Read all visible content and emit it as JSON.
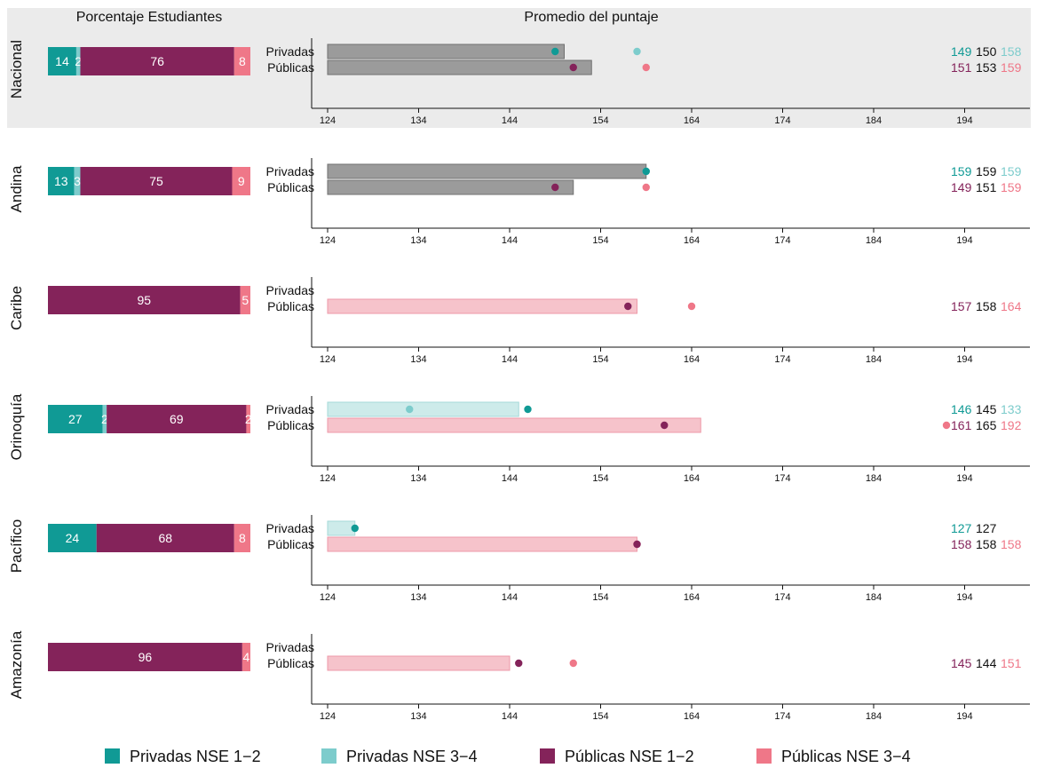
{
  "colors": {
    "priv_low": "#109A95",
    "priv_high": "#7DCCCC",
    "pub_low": "#84235A",
    "pub_high": "#EF7788",
    "bar_gray": "#9B9B9B",
    "bar_gray_stroke": "#707070",
    "bar_pub_fill": "#F6C3CB",
    "bar_pub_stroke": "#EE9AA8",
    "bar_priv_fill": "#CDEBEA",
    "bar_priv_stroke": "#A5D9D8",
    "panel_highlight": "#EBEBEB",
    "text_avg": "#111111"
  },
  "headers": {
    "left": "Porcentaje Estudiantes",
    "right": "Promedio del puntaje"
  },
  "row_labels": {
    "privadas": "Privadas",
    "publicas": "Públicas"
  },
  "chart_data": {
    "type": "bar",
    "x_axis": {
      "range": [
        124,
        204
      ],
      "ticks": [
        "124",
        "134",
        "144",
        "154",
        "164",
        "174",
        "184",
        "194",
        "204"
      ]
    },
    "legend": [
      {
        "name": "Privadas NSE 1−2",
        "color": "#109A95"
      },
      {
        "name": "Privadas NSE 3−4",
        "color": "#7DCCCC"
      },
      {
        "name": "Públicas NSE 1−2",
        "color": "#84235A"
      },
      {
        "name": "Públicas NSE 3−4",
        "color": "#EF7788"
      }
    ],
    "regions": [
      {
        "name": "Nacional",
        "highlight": true,
        "last_tick_shown": true,
        "bar_style": "gray",
        "percentages": [
          {
            "group": "Privadas NSE 1−2",
            "value": 14,
            "label": "14"
          },
          {
            "group": "Privadas NSE 3−4",
            "value": 2,
            "label": "2"
          },
          {
            "group": "Públicas NSE 1−2",
            "value": 76,
            "label": "76"
          },
          {
            "group": "Públicas NSE 3−4",
            "value": 8,
            "label": "8"
          }
        ],
        "privadas": {
          "mean": 150,
          "nse12": 149,
          "nse34": 158,
          "label_nse12": "149",
          "label_mean": "150",
          "label_nse34": "158"
        },
        "publicas": {
          "mean": 153,
          "nse12": 151,
          "nse34": 159,
          "label_nse12": "151",
          "label_mean": "153",
          "label_nse34": "159"
        }
      },
      {
        "name": "Andina",
        "highlight": false,
        "last_tick_shown": false,
        "bar_style": "gray",
        "percentages": [
          {
            "group": "Privadas NSE 1−2",
            "value": 13,
            "label": "13"
          },
          {
            "group": "Privadas NSE 3−4",
            "value": 3,
            "label": "3"
          },
          {
            "group": "Públicas NSE 1−2",
            "value": 75,
            "label": "75"
          },
          {
            "group": "Públicas NSE 3−4",
            "value": 9,
            "label": "9"
          }
        ],
        "privadas": {
          "mean": 159,
          "nse12": 159,
          "nse34": 159,
          "label_nse12": "159",
          "label_mean": "159",
          "label_nse34": "159"
        },
        "publicas": {
          "mean": 151,
          "nse12": 149,
          "nse34": 159,
          "label_nse12": "149",
          "label_mean": "151",
          "label_nse34": "159"
        }
      },
      {
        "name": "Caribe",
        "highlight": false,
        "last_tick_shown": false,
        "bar_style": "color",
        "percentages": [
          {
            "group": "Públicas NSE 1−2",
            "value": 95,
            "label": "95"
          },
          {
            "group": "Públicas NSE 3−4",
            "value": 5,
            "label": "5"
          }
        ],
        "privadas": null,
        "publicas": {
          "mean": 158,
          "nse12": 157,
          "nse34": 164,
          "label_nse12": "157",
          "label_mean": "158",
          "label_nse34": "164"
        }
      },
      {
        "name": "Orinoquía",
        "highlight": false,
        "last_tick_shown": false,
        "bar_style": "color",
        "percentages": [
          {
            "group": "Privadas NSE 1−2",
            "value": 27,
            "label": "27"
          },
          {
            "group": "Privadas NSE 3−4",
            "value": 2,
            "label": "2"
          },
          {
            "group": "Públicas NSE 1−2",
            "value": 69,
            "label": "69"
          },
          {
            "group": "Públicas NSE 3−4",
            "value": 2,
            "label": "2"
          }
        ],
        "privadas": {
          "mean": 145,
          "nse12": 146,
          "nse34": 133,
          "label_nse12": "146",
          "label_mean": "145",
          "label_nse34": "133"
        },
        "publicas": {
          "mean": 165,
          "nse12": 161,
          "nse34": 192,
          "label_nse12": "161",
          "label_mean": "165",
          "label_nse34": "192"
        }
      },
      {
        "name": "Pacífico",
        "highlight": false,
        "last_tick_shown": false,
        "bar_style": "color",
        "percentages": [
          {
            "group": "Privadas NSE 1−2",
            "value": 24,
            "label": "24"
          },
          {
            "group": "Públicas NSE 1−2",
            "value": 68,
            "label": "68"
          },
          {
            "group": "Públicas NSE 3−4",
            "value": 8,
            "label": "8"
          }
        ],
        "privadas": {
          "mean": 127,
          "nse12": 127,
          "nse34": null,
          "label_nse12": "127",
          "label_mean": "127",
          "label_nse34": ""
        },
        "publicas": {
          "mean": 158,
          "nse12": 158,
          "nse34": 158,
          "label_nse12": "158",
          "label_mean": "158",
          "label_nse34": "158"
        }
      },
      {
        "name": "Amazonía",
        "highlight": false,
        "last_tick_shown": false,
        "bar_style": "color",
        "percentages": [
          {
            "group": "Públicas NSE 1−2",
            "value": 96,
            "label": "96"
          },
          {
            "group": "Públicas NSE 3−4",
            "value": 4,
            "label": "4"
          }
        ],
        "privadas": null,
        "publicas": {
          "mean": 144,
          "nse12": 145,
          "nse34": 151,
          "label_nse12": "145",
          "label_mean": "144",
          "label_nse34": "151"
        }
      }
    ]
  }
}
